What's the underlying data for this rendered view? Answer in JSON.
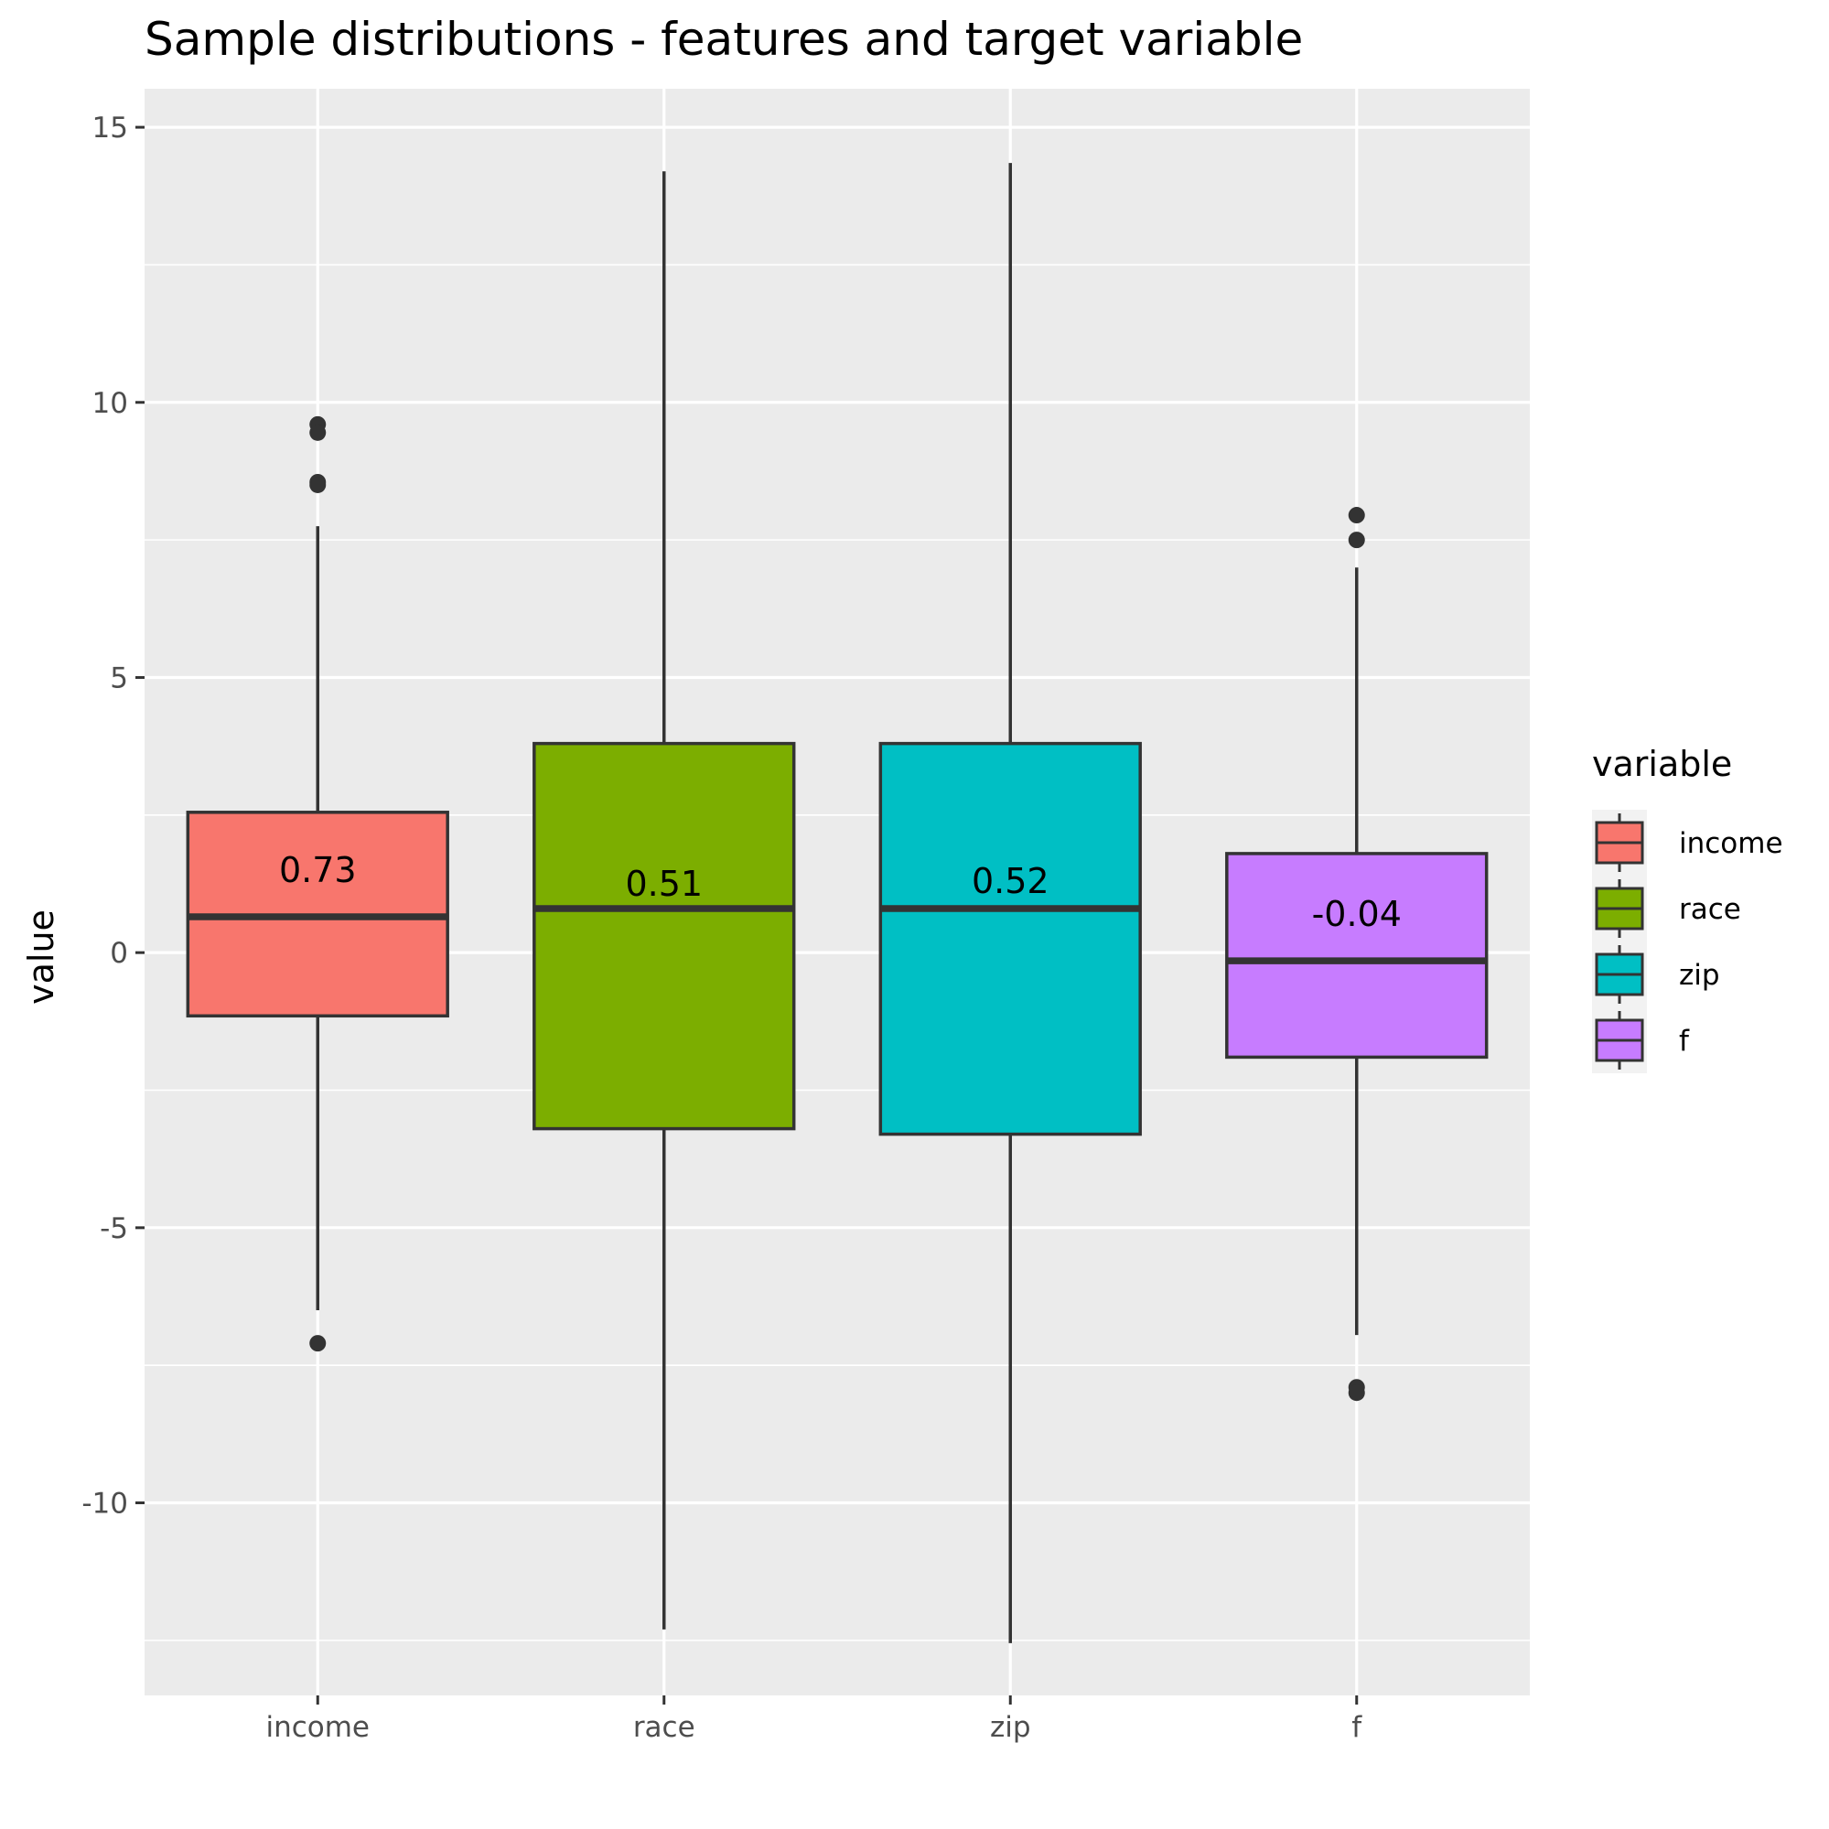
{
  "chart_data": {
    "type": "boxplot",
    "title": "Sample distributions - features and target variable",
    "xlabel": "",
    "ylabel": "value",
    "ylim": [
      -13.5,
      15.7
    ],
    "yticks": [
      -10,
      -5,
      0,
      5,
      10,
      15
    ],
    "ytick_labels": [
      "-10",
      "-5",
      "0",
      "5",
      "10",
      "15"
    ],
    "grid": true,
    "legend": {
      "title": "variable",
      "position": "right"
    },
    "categories": [
      "income",
      "race",
      "zip",
      "f"
    ],
    "boxes": [
      {
        "name": "income",
        "color": "#F8766D",
        "whisker_low": -6.5,
        "q1": -1.15,
        "median": 0.65,
        "q3": 2.55,
        "whisker_high": 7.75,
        "outliers": [
          9.6,
          9.45,
          8.55,
          8.5,
          -7.1
        ],
        "label": "0.73",
        "label_y": 1.5
      },
      {
        "name": "race",
        "color": "#7CAE00",
        "whisker_low": -12.3,
        "q1": -3.2,
        "median": 0.8,
        "q3": 3.8,
        "whisker_high": 14.2,
        "outliers": [],
        "label": "0.51",
        "label_y": 1.25
      },
      {
        "name": "zip",
        "color": "#00BFC4",
        "whisker_low": -12.55,
        "q1": -3.3,
        "median": 0.8,
        "q3": 3.8,
        "whisker_high": 14.35,
        "outliers": [],
        "label": "0.52",
        "label_y": 1.3
      },
      {
        "name": "f",
        "color": "#C77CFF",
        "whisker_low": -6.95,
        "q1": -1.9,
        "median": -0.15,
        "q3": 1.8,
        "whisker_high": 7.0,
        "outliers": [
          7.95,
          7.5,
          -7.9,
          -8.0
        ],
        "label": "-0.04",
        "label_y": 0.7
      }
    ]
  }
}
